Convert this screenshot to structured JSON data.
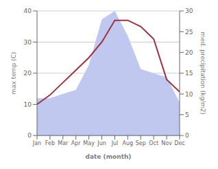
{
  "chart_data": {
    "type": "line",
    "xlabel": "date (month)",
    "ylabel": "max temp (C)",
    "y2label": "med. precipitation (kg/m2)",
    "categories": [
      "Jan",
      "Feb",
      "Mar",
      "Apr",
      "May",
      "Jun",
      "Jul",
      "Aug",
      "Sep",
      "Oct",
      "Nov",
      "Dec"
    ],
    "series": [
      {
        "type": "area",
        "axis": "y2",
        "color": "#c0c8f0",
        "values": [
          9,
          9,
          10,
          11,
          17,
          28,
          30,
          24,
          16,
          15,
          14,
          8
        ]
      },
      {
        "type": "line",
        "color": "#993344",
        "values": [
          10,
          13,
          17,
          21,
          25,
          30,
          37,
          37,
          35,
          31,
          18,
          14
        ]
      }
    ],
    "ylim": [
      0,
      40
    ],
    "yticks": [
      0,
      10,
      20,
      30,
      40
    ],
    "y2lim": [
      0,
      30
    ],
    "y2ticks": [
      0,
      5,
      10,
      15,
      20,
      25,
      30
    ],
    "grid": true
  }
}
